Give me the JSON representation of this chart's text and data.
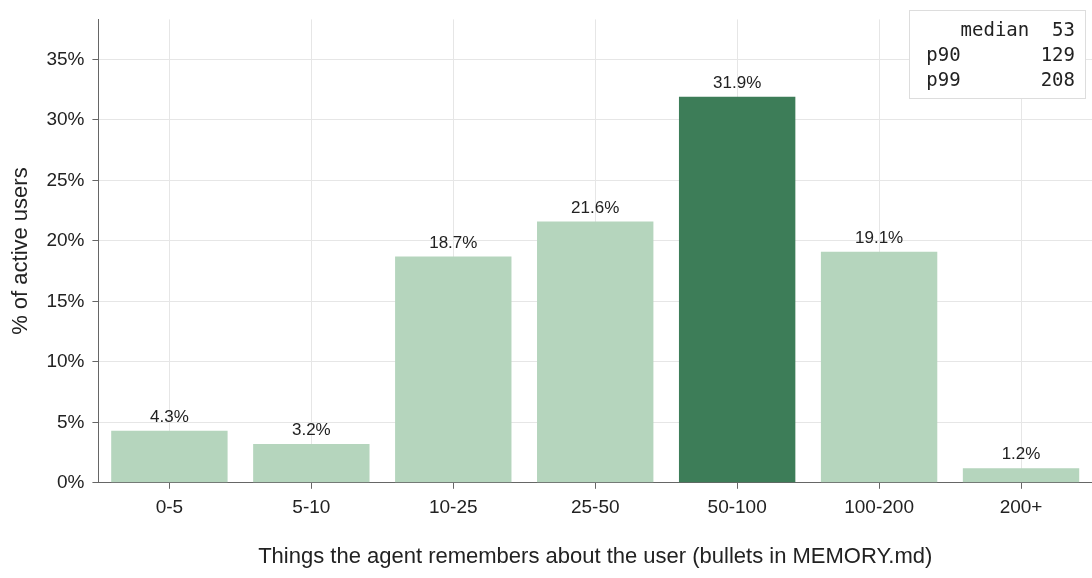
{
  "chart_data": {
    "type": "bar",
    "xlabel": "Things the agent remembers about the user (bullets in MEMORY.md)",
    "ylabel": "% of active users",
    "categories": [
      "0-5",
      "5-10",
      "10-25",
      "25-50",
      "50-100",
      "100-200",
      "200+"
    ],
    "values": [
      4.3,
      3.2,
      18.7,
      21.6,
      31.9,
      19.1,
      1.2
    ],
    "colors": [
      "#b5d5bd",
      "#b5d5bd",
      "#b5d5bd",
      "#b5d5bd",
      "#3d7d58",
      "#b5d5bd",
      "#b5d5bd"
    ],
    "value_labels": [
      "4.3%",
      "3.2%",
      "18.7%",
      "21.6%",
      "31.9%",
      "19.1%",
      "1.2%"
    ],
    "ylim": [
      0,
      38.3
    ],
    "yticks": [
      {
        "value": 0,
        "label": "0%"
      },
      {
        "value": 5,
        "label": "5%"
      },
      {
        "value": 10,
        "label": "10%"
      },
      {
        "value": 15,
        "label": "15%"
      },
      {
        "value": 20,
        "label": "20%"
      },
      {
        "value": 25,
        "label": "25%"
      },
      {
        "value": 30,
        "label": "30%"
      },
      {
        "value": 35,
        "label": "35%"
      }
    ],
    "annotations": [
      "   median  53",
      "p90       129",
      "p99       208"
    ],
    "grid": true,
    "legend": false
  }
}
